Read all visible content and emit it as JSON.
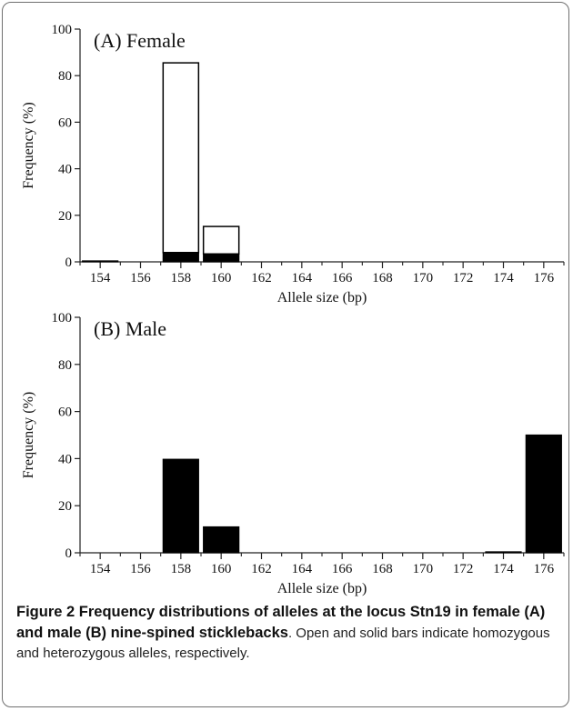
{
  "chart_data": [
    {
      "type": "bar",
      "panel_label": "(A) Female",
      "xlabel": "Allele size (bp)",
      "ylabel": "Frequency (%)",
      "ylim": [
        0,
        100
      ],
      "yticks": [
        "0",
        "20",
        "40",
        "60",
        "80",
        "100"
      ],
      "categories": [
        "154",
        "156",
        "158",
        "160",
        "162",
        "164",
        "166",
        "168",
        "170",
        "172",
        "174",
        "176"
      ],
      "series": [
        {
          "values": [
            0,
            0,
            81.5,
            11.8,
            0,
            0,
            0,
            0,
            0,
            0,
            0,
            0
          ],
          "fill": "#ffffff"
        },
        {
          "values": [
            0.4,
            0,
            4.0,
            3.4,
            0,
            0,
            0,
            0,
            0,
            0,
            0,
            0
          ],
          "fill": "#000000"
        }
      ],
      "stacked": true
    },
    {
      "type": "bar",
      "panel_label": "(B) Male",
      "xlabel": "Allele size (bp)",
      "ylabel": "Frequency (%)",
      "ylim": [
        0,
        100
      ],
      "yticks": [
        "0",
        "20",
        "40",
        "60",
        "80",
        "100"
      ],
      "categories": [
        "154",
        "156",
        "158",
        "160",
        "162",
        "164",
        "166",
        "168",
        "170",
        "172",
        "174",
        "176"
      ],
      "series": [
        {
          "values": [
            0,
            0,
            0,
            0,
            0,
            0,
            0,
            0,
            0,
            0,
            0,
            0
          ],
          "fill": "#ffffff"
        },
        {
          "values": [
            0,
            0,
            39.7,
            11.0,
            0,
            0,
            0,
            0,
            0,
            0,
            0.4,
            50.0
          ],
          "fill": "#000000"
        }
      ],
      "stacked": true
    }
  ],
  "caption": {
    "bold": "Figure 2 Frequency distributions of alleles at the locus Stn19 in female (A) and male (B) nine-spined sticklebacks",
    "rest": ". Open and solid bars indicate homozygous and heterozygous alleles, respectively."
  }
}
